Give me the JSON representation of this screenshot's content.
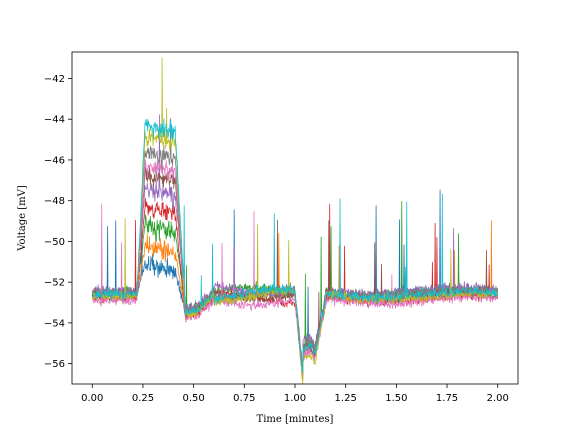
{
  "chart_data": {
    "type": "line",
    "title": "",
    "xlabel": "Time [minutes]",
    "ylabel": "Voltage [mV]",
    "xlim": [
      -0.1,
      2.1
    ],
    "ylim": [
      -57.0,
      -40.7
    ],
    "xticks": [
      0.0,
      0.25,
      0.5,
      0.75,
      1.0,
      1.25,
      1.5,
      1.75,
      2.0
    ],
    "xtick_labels": [
      "0.00",
      "0.25",
      "0.50",
      "0.75",
      "1.00",
      "1.25",
      "1.50",
      "1.75",
      "2.00"
    ],
    "yticks": [
      -56,
      -54,
      -52,
      -50,
      -48,
      -46,
      -44,
      -42
    ],
    "ytick_labels": [
      "−56",
      "−54",
      "−52",
      "−50",
      "−48",
      "−46",
      "−44",
      "−42"
    ],
    "grid": false,
    "legend": "none",
    "series": [
      {
        "color": "#1f77b4",
        "baseline": -52.6,
        "plateau": -51.1,
        "dip": -55.3
      },
      {
        "color": "#ff7f0e",
        "baseline": -52.7,
        "plateau": -50.2,
        "dip": -55.5
      },
      {
        "color": "#2ca02c",
        "baseline": -52.5,
        "plateau": -49.2,
        "dip": -55.1
      },
      {
        "color": "#d62728",
        "baseline": -52.8,
        "plateau": -48.3,
        "dip": -55.6
      },
      {
        "color": "#9467bd",
        "baseline": -52.4,
        "plateau": -47.4,
        "dip": -55.0
      },
      {
        "color": "#8c564b",
        "baseline": -52.6,
        "plateau": -46.7,
        "dip": -55.4
      },
      {
        "color": "#e377c2",
        "baseline": -52.9,
        "plateau": -46.3,
        "dip": -55.7
      },
      {
        "color": "#7f7f7f",
        "baseline": -52.5,
        "plateau": -45.6,
        "dip": -55.2
      },
      {
        "color": "#bcbd22",
        "baseline": -52.7,
        "plateau": -44.8,
        "dip": -55.9
      },
      {
        "color": "#17becf",
        "baseline": -52.6,
        "plateau": -44.3,
        "dip": -55.4
      }
    ]
  }
}
